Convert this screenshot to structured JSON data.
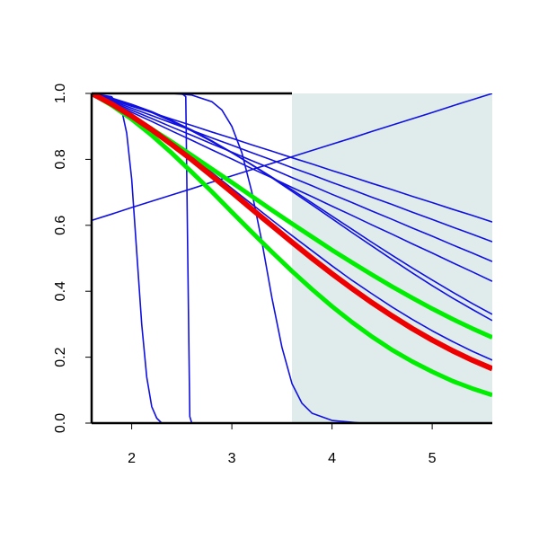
{
  "chart_data": {
    "type": "line",
    "x": [
      1.6,
      1.8,
      2.0,
      2.2,
      2.4,
      2.6,
      2.8,
      3.0,
      3.2,
      3.4,
      3.6,
      3.8,
      4.0,
      4.2,
      4.4,
      4.6,
      4.8,
      5.0,
      5.2,
      5.4,
      5.6
    ],
    "xlim": [
      1.6,
      5.6
    ],
    "ylim": [
      0,
      1
    ],
    "xticks": [
      2,
      3,
      4,
      5
    ],
    "yticks": [
      {
        "value": 0,
        "label": "0.0"
      },
      0.2,
      0.4,
      0.6,
      0.8,
      {
        "value": 1,
        "label": "1.0"
      }
    ],
    "shaded_region": {
      "x": [
        3.6,
        5.6
      ],
      "color": "#e0ecec"
    },
    "series": [
      {
        "color": "#1010e0",
        "linewidth": 1.6,
        "values": [
          0.615,
          0.634,
          0.654,
          0.673,
          0.692,
          0.711,
          0.731,
          0.75,
          0.769,
          0.788,
          0.808,
          0.827,
          0.846,
          0.865,
          0.885,
          0.904,
          0.923,
          0.942,
          0.962,
          0.981,
          1.0
        ]
      },
      {
        "color": "#1010e0",
        "linewidth": 1.6,
        "values": [
          1,
          0.981,
          0.961,
          0.942,
          0.922,
          0.903,
          0.883,
          0.864,
          0.844,
          0.825,
          0.805,
          0.786,
          0.766,
          0.747,
          0.727,
          0.708,
          0.688,
          0.669,
          0.649,
          0.63,
          0.61
        ]
      },
      {
        "color": "#1010e0",
        "linewidth": 1.6,
        "values": [
          1,
          0.978,
          0.955,
          0.933,
          0.91,
          0.888,
          0.865,
          0.843,
          0.82,
          0.798,
          0.775,
          0.753,
          0.73,
          0.708,
          0.685,
          0.663,
          0.64,
          0.618,
          0.595,
          0.573,
          0.55
        ]
      },
      {
        "color": "#1010e0",
        "linewidth": 1.6,
        "values": [
          1,
          0.975,
          0.949,
          0.924,
          0.898,
          0.873,
          0.847,
          0.822,
          0.796,
          0.771,
          0.745,
          0.72,
          0.694,
          0.669,
          0.643,
          0.618,
          0.592,
          0.567,
          0.541,
          0.516,
          0.49
        ]
      },
      {
        "color": "#1010e0",
        "linewidth": 1.6,
        "values": [
          1,
          0.972,
          0.943,
          0.915,
          0.886,
          0.858,
          0.829,
          0.801,
          0.772,
          0.744,
          0.715,
          0.687,
          0.658,
          0.63,
          0.601,
          0.573,
          0.544,
          0.516,
          0.487,
          0.459,
          0.43
        ]
      },
      {
        "color": "#1010e0",
        "linewidth": 1.6,
        "values": [
          1,
          0.984,
          0.965,
          0.942,
          0.915,
          0.886,
          0.854,
          0.82,
          0.784,
          0.746,
          0.708,
          0.668,
          0.628,
          0.588,
          0.548,
          0.509,
          0.471,
          0.434,
          0.398,
          0.363,
          0.33
        ]
      },
      {
        "color": "#1010e0",
        "linewidth": 1.6,
        "values": [
          1,
          0.986,
          0.967,
          0.945,
          0.918,
          0.889,
          0.856,
          0.821,
          0.783,
          0.744,
          0.703,
          0.662,
          0.62,
          0.578,
          0.537,
          0.496,
          0.456,
          0.417,
          0.38,
          0.345,
          0.311
        ]
      },
      {
        "color": "#1010e0",
        "linewidth": 1.6,
        "values": [
          1,
          0.968,
          0.932,
          0.892,
          0.85,
          0.806,
          0.76,
          0.712,
          0.664,
          0.616,
          0.569,
          0.523,
          0.477,
          0.433,
          0.392,
          0.352,
          0.315,
          0.28,
          0.248,
          0.218,
          0.191
        ]
      },
      {
        "color": "#1010e0",
        "linewidth": 1.6,
        "x": [
          1.6,
          1.8,
          1.9,
          1.95,
          2.0,
          2.05,
          2.1,
          2.15,
          2.2,
          2.25,
          2.3,
          3.0,
          5.6
        ],
        "values": [
          1,
          0.99,
          0.95,
          0.88,
          0.74,
          0.52,
          0.3,
          0.14,
          0.05,
          0.015,
          0,
          0,
          0
        ]
      },
      {
        "color": "#1010e0",
        "linewidth": 1.6,
        "x": [
          1.6,
          2.5,
          2.54,
          2.56,
          2.58,
          2.6,
          5.6
        ],
        "values": [
          1,
          1,
          0.99,
          0.5,
          0.02,
          0,
          0
        ]
      },
      {
        "color": "#1010e0",
        "linewidth": 1.6,
        "x": [
          1.6,
          2.4,
          2.6,
          2.8,
          2.9,
          3.0,
          3.1,
          3.2,
          3.3,
          3.4,
          3.5,
          3.6,
          3.7,
          3.8,
          4.0,
          4.3,
          5.6
        ],
        "values": [
          1,
          1,
          0.995,
          0.975,
          0.95,
          0.9,
          0.82,
          0.7,
          0.55,
          0.38,
          0.23,
          0.12,
          0.06,
          0.03,
          0.008,
          0,
          0
        ]
      },
      {
        "color": "#00ee00",
        "linewidth": 5,
        "values": [
          1,
          0.966,
          0.93,
          0.892,
          0.853,
          0.812,
          0.771,
          0.73,
          0.688,
          0.646,
          0.605,
          0.565,
          0.525,
          0.487,
          0.45,
          0.414,
          0.38,
          0.347,
          0.316,
          0.287,
          0.26
        ]
      },
      {
        "color": "#00ee00",
        "linewidth": 5,
        "values": [
          1,
          0.964,
          0.922,
          0.873,
          0.819,
          0.761,
          0.702,
          0.64,
          0.579,
          0.519,
          0.461,
          0.406,
          0.354,
          0.306,
          0.262,
          0.222,
          0.187,
          0.156,
          0.128,
          0.105,
          0.085
        ]
      },
      {
        "color": "#ee0000",
        "linewidth": 6,
        "values": [
          1,
          0.968,
          0.931,
          0.89,
          0.845,
          0.799,
          0.75,
          0.7,
          0.649,
          0.599,
          0.549,
          0.5,
          0.453,
          0.408,
          0.365,
          0.325,
          0.287,
          0.252,
          0.22,
          0.191,
          0.165
        ]
      }
    ]
  }
}
